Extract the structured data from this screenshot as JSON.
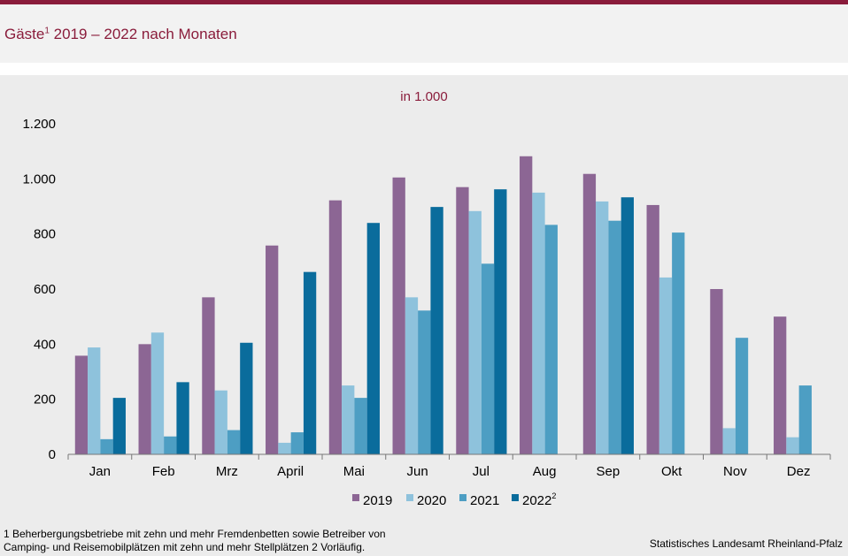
{
  "header": {
    "title_main": "Gäste",
    "title_sup": "1",
    "title_rest": " 2019 – 2022 nach Monaten"
  },
  "chart_data": {
    "type": "bar",
    "unit_label": "in 1.000",
    "categories": [
      "Jan",
      "Feb",
      "Mrz",
      "April",
      "Mai",
      "Jun",
      "Jul",
      "Aug",
      "Sep",
      "Okt",
      "Nov",
      "Dez"
    ],
    "series": [
      {
        "name": "2019",
        "sup": "",
        "color": "#8c6694",
        "values": [
          358,
          400,
          570,
          758,
          922,
          1005,
          970,
          1082,
          1018,
          905,
          600,
          500
        ]
      },
      {
        "name": "2020",
        "sup": "",
        "color": "#8ec2dc",
        "values": [
          388,
          442,
          232,
          42,
          250,
          570,
          883,
          950,
          918,
          642,
          95,
          62
        ]
      },
      {
        "name": "2021",
        "sup": "",
        "color": "#4d9ec3",
        "values": [
          55,
          65,
          88,
          80,
          205,
          522,
          692,
          833,
          848,
          805,
          423,
          250
        ]
      },
      {
        "name": "2022",
        "sup": "2",
        "color": "#0a6c9c",
        "values": [
          205,
          262,
          405,
          662,
          840,
          898,
          962,
          null,
          933,
          null,
          null,
          null
        ]
      }
    ],
    "ylim": [
      0,
      1200
    ],
    "yticks": [
      0,
      200,
      400,
      600,
      800,
      1000,
      1200
    ],
    "ytick_labels": [
      "0",
      "200",
      "400",
      "600",
      "800",
      "1.000",
      "1.200"
    ]
  },
  "footnotes": {
    "left_line1": "1 Beherbergungsbetriebe  mit zehn und mehr Fremdenbetten  sowie Betreiber von",
    "left_line2": "Camping- und Reisemobilplätzen  mit zehn und mehr Stellplätzen 2 Vorläufig.",
    "source": "Statistisches Landesamt Rheinland-Pfalz"
  }
}
